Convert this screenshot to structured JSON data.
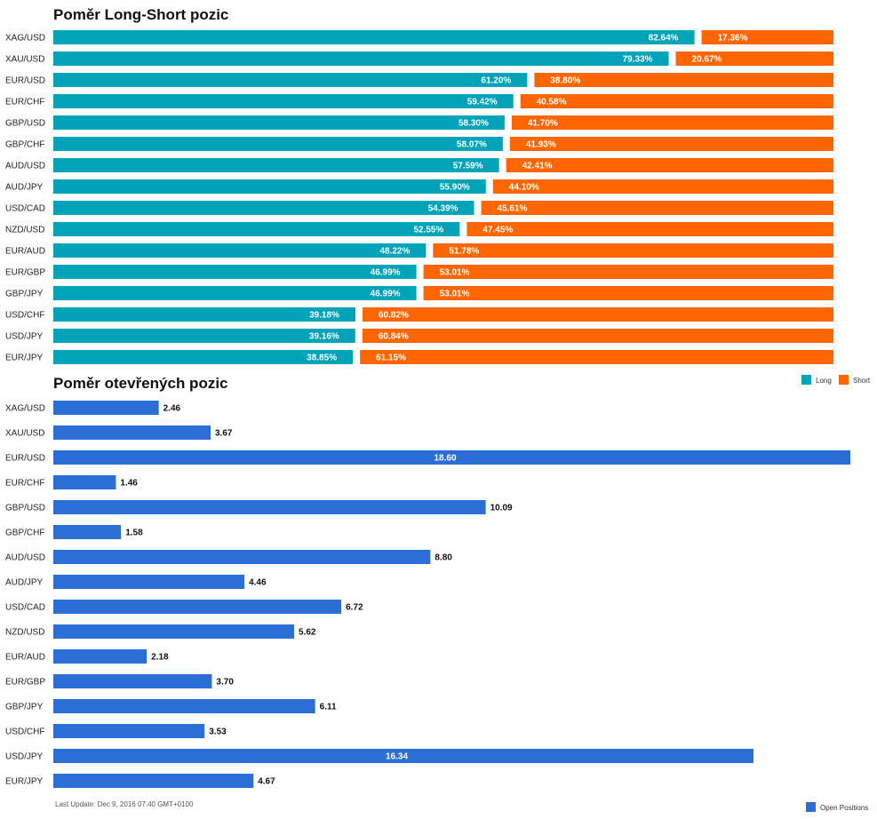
{
  "chart_data": [
    {
      "type": "bar",
      "orientation": "horizontal",
      "stacked": true,
      "title": "Poměr Long-Short pozic",
      "categories": [
        "XAG/USD",
        "XAU/USD",
        "EUR/USD",
        "EUR/CHF",
        "GBP/USD",
        "GBP/CHF",
        "AUD/USD",
        "AUD/JPY",
        "USD/CAD",
        "NZD/USD",
        "EUR/AUD",
        "EUR/GBP",
        "GBP/JPY",
        "USD/CHF",
        "USD/JPY",
        "EUR/JPY"
      ],
      "series": [
        {
          "name": "Long",
          "color": "#00a3b8",
          "values": [
            82.64,
            79.33,
            61.2,
            59.42,
            58.3,
            58.07,
            57.59,
            55.9,
            54.39,
            52.55,
            48.22,
            46.99,
            46.99,
            39.18,
            39.16,
            38.85
          ],
          "labels": [
            "82.64%",
            "79.33%",
            "61.20%",
            "59.42%",
            "58.30%",
            "58.07%",
            "57.59%",
            "55.90%",
            "54.39%",
            "52.55%",
            "48.22%",
            "46.99%",
            "46.99%",
            "39.18%",
            "39.16%",
            "38.85%"
          ]
        },
        {
          "name": "Short",
          "color": "#ff6600",
          "values": [
            17.36,
            20.67,
            38.8,
            40.58,
            41.7,
            41.93,
            42.41,
            44.1,
            45.61,
            47.45,
            51.78,
            53.01,
            53.01,
            60.82,
            60.84,
            61.15
          ],
          "labels": [
            "17.36%",
            "20.67%",
            "38.80%",
            "40.58%",
            "41.70%",
            "41.93%",
            "42.41%",
            "44.10%",
            "45.61%",
            "47.45%",
            "51.78%",
            "53.01%",
            "53.01%",
            "60.82%",
            "60.84%",
            "61.15%"
          ]
        }
      ],
      "legend_position": "right"
    },
    {
      "type": "bar",
      "orientation": "horizontal",
      "title": "Poměr otevřených pozic",
      "categories": [
        "XAG/USD",
        "XAU/USD",
        "EUR/USD",
        "EUR/CHF",
        "GBP/USD",
        "GBP/CHF",
        "AUD/USD",
        "AUD/JPY",
        "USD/CAD",
        "NZD/USD",
        "EUR/AUD",
        "EUR/GBP",
        "GBP/JPY",
        "USD/CHF",
        "USD/JPY",
        "EUR/JPY"
      ],
      "series": [
        {
          "name": "Open Positions",
          "color": "#2b6fd6",
          "values": [
            2.46,
            3.67,
            18.6,
            1.46,
            10.09,
            1.58,
            8.8,
            4.46,
            6.72,
            5.62,
            2.18,
            3.7,
            6.11,
            3.53,
            16.34,
            4.67
          ],
          "labels": [
            "2.46",
            "3.67",
            "18.60",
            "1.46",
            "10.09",
            "1.58",
            "8.80",
            "4.46",
            "6.72",
            "5.62",
            "2.18",
            "3.70",
            "6.11",
            "3.53",
            "16.34",
            "4.67"
          ]
        }
      ],
      "legend_position": "bottom-right"
    }
  ],
  "footer": {
    "last_update": "Last Update: Dec 9, 2016 07:40 GMT+0100"
  }
}
